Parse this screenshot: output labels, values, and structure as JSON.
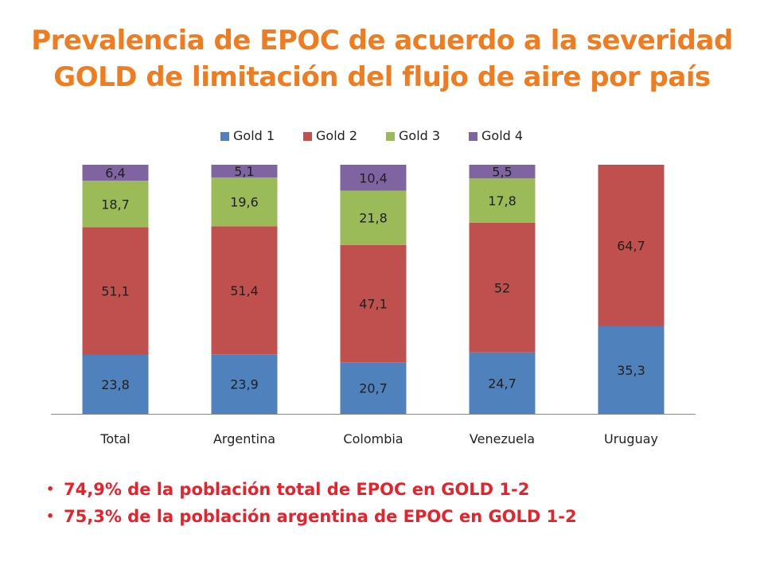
{
  "title": {
    "line1": "Prevalencia de EPOC de acuerdo a la severidad",
    "line2": "GOLD de limitación del flujo de aire por país"
  },
  "bullets": [
    "74,9% de la población total de EPOC en GOLD 1-2",
    "75,3% de la población argentina de EPOC en GOLD 1-2"
  ],
  "chart_data": {
    "type": "bar",
    "stacked": true,
    "percent_stacked": true,
    "categories": [
      "Total",
      "Argentina",
      "Colombia",
      "Venezuela",
      "Uruguay"
    ],
    "series": [
      {
        "name": "Gold 1",
        "color": "#4f81bd",
        "values": [
          23.8,
          23.9,
          20.7,
          24.7,
          35.3
        ],
        "labels": [
          "23,8",
          "23,9",
          "20,7",
          "24,7",
          "35,3"
        ]
      },
      {
        "name": "Gold 2",
        "color": "#c0504d",
        "values": [
          51.1,
          51.4,
          47.1,
          52,
          64.7
        ],
        "labels": [
          "51,1",
          "51,4",
          "47,1",
          "52",
          "64,7"
        ]
      },
      {
        "name": "Gold 3",
        "color": "#9bbb59",
        "values": [
          18.7,
          19.6,
          21.8,
          17.8,
          0
        ],
        "labels": [
          "18,7",
          "19,6",
          "21,8",
          "17,8",
          ""
        ]
      },
      {
        "name": "Gold 4",
        "color": "#8064a2",
        "values": [
          6.4,
          5.1,
          10.4,
          5.5,
          0
        ],
        "labels": [
          "6,4",
          "5,1",
          "10,4",
          "5,5",
          ""
        ]
      }
    ],
    "legend": "top",
    "grid": false
  }
}
